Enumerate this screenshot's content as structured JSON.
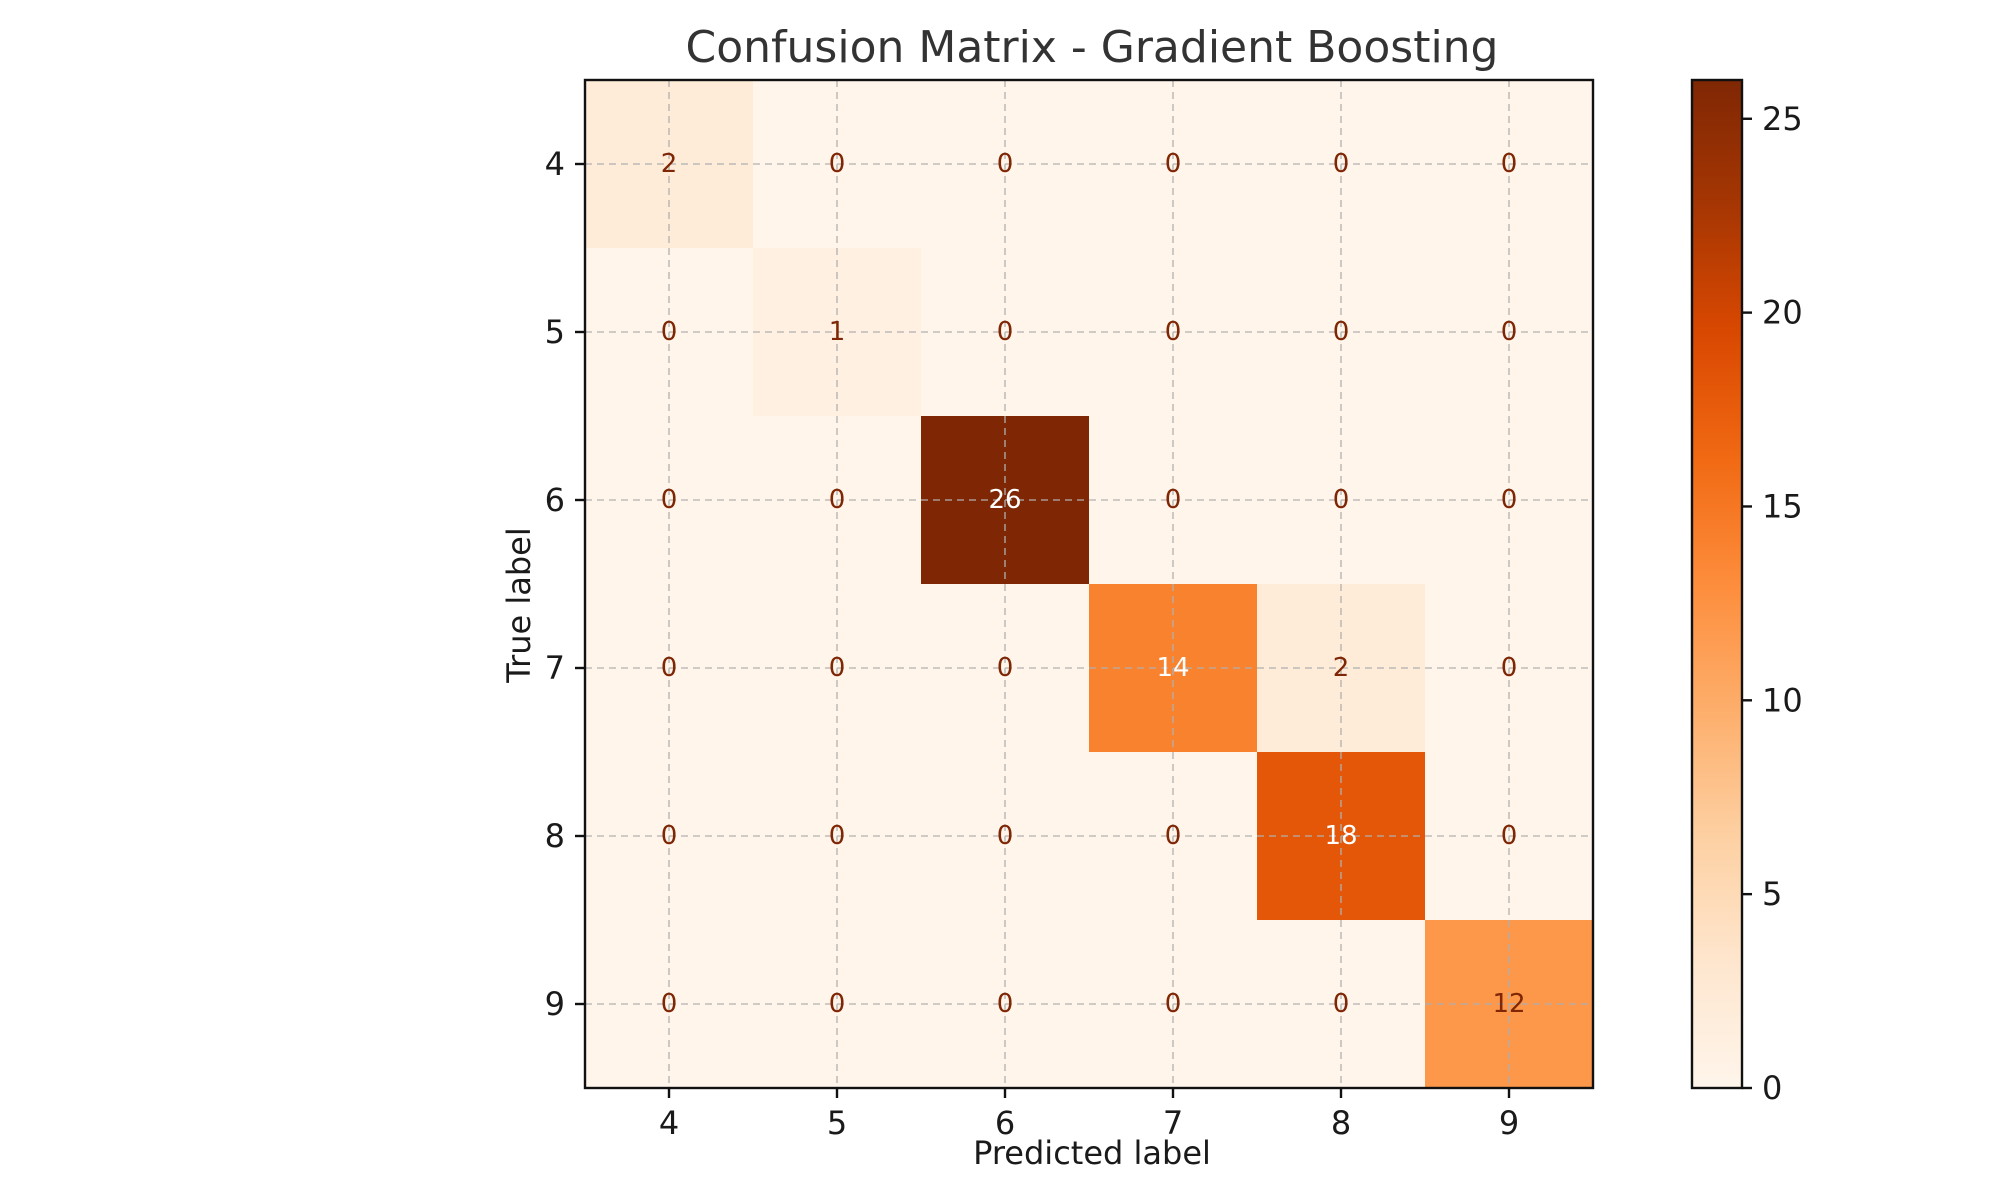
{
  "chart_data": {
    "type": "heatmap",
    "title": "Confusion Matrix - Gradient Boosting",
    "xlabel": "Predicted label",
    "ylabel": "True label",
    "x_categories": [
      "4",
      "5",
      "6",
      "7",
      "8",
      "9"
    ],
    "y_categories": [
      "4",
      "5",
      "6",
      "7",
      "8",
      "9"
    ],
    "values": [
      [
        2,
        0,
        0,
        0,
        0,
        0
      ],
      [
        0,
        1,
        0,
        0,
        0,
        0
      ],
      [
        0,
        0,
        26,
        0,
        0,
        0
      ],
      [
        0,
        0,
        0,
        14,
        2,
        0
      ],
      [
        0,
        0,
        0,
        0,
        18,
        0
      ],
      [
        0,
        0,
        0,
        0,
        0,
        12
      ]
    ],
    "colormap": "Oranges",
    "vmin": 0,
    "vmax": 26,
    "colorbar_ticks": [
      0,
      5,
      10,
      15,
      20,
      25
    ],
    "grid": true,
    "colors": {
      "low": "#fff5eb",
      "high": "#7f2704",
      "dark_text": "#7f2704",
      "light_text": "#ffffff"
    }
  }
}
